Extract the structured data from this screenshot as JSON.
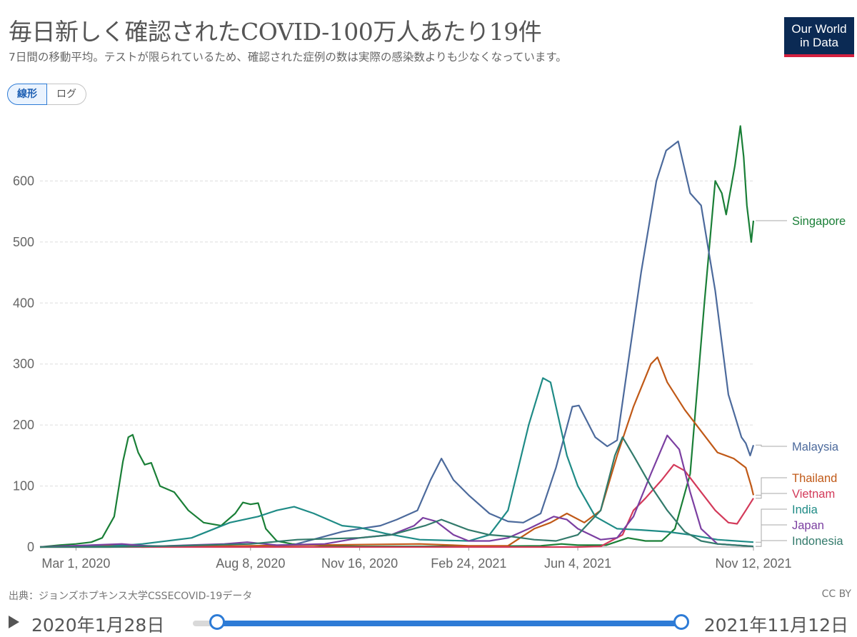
{
  "header": {
    "title": "毎日新しく確認されたCOVID-100万人あたり19件",
    "subtitle": "7日間の移動平均。テストが限られているため、確認された症例の数は実際の感染数よりも少なくなっています。",
    "logo_line1": "Our World",
    "logo_line2": "in Data"
  },
  "controls": {
    "linear_label": "線形",
    "log_label": "ログ"
  },
  "footer": {
    "source": "出典：ジョンズホプキンス大学CSSECOVID-19データ",
    "license": "CC BY"
  },
  "timeline": {
    "start_label": "2020年1月28日",
    "end_label": "2021年11月12日"
  },
  "chart_data": {
    "type": "line",
    "x_unit": "date",
    "x_range": [
      "2020-01-28",
      "2021-11-12"
    ],
    "ylim": [
      0,
      700
    ],
    "y_ticks": [
      0,
      100,
      200,
      300,
      400,
      500,
      600
    ],
    "y_tick_labels": [
      "0",
      "100",
      "200",
      "300",
      "400",
      "500",
      "600"
    ],
    "x_ticks": [
      {
        "date": "2020-03-01",
        "label": "Mar 1, 2020"
      },
      {
        "date": "2020-08-08",
        "label": "Aug 8, 2020"
      },
      {
        "date": "2020-11-16",
        "label": "Nov 16, 2020"
      },
      {
        "date": "2021-02-24",
        "label": "Feb 24, 2021"
      },
      {
        "date": "2021-06-04",
        "label": "Jun 4, 2021"
      },
      {
        "date": "2021-11-12",
        "label": "Nov 12, 2021"
      }
    ],
    "grid": "horizontal-dashed",
    "legend_placement": "right-inline",
    "series": [
      {
        "name": "Singapore",
        "color": "#1a7f37",
        "points": [
          [
            "2020-01-28",
            0
          ],
          [
            "2020-02-15",
            3
          ],
          [
            "2020-03-01",
            5
          ],
          [
            "2020-03-15",
            8
          ],
          [
            "2020-03-25",
            15
          ],
          [
            "2020-04-05",
            50
          ],
          [
            "2020-04-13",
            140
          ],
          [
            "2020-04-18",
            180
          ],
          [
            "2020-04-22",
            184
          ],
          [
            "2020-04-27",
            155
          ],
          [
            "2020-05-03",
            135
          ],
          [
            "2020-05-09",
            138
          ],
          [
            "2020-05-17",
            100
          ],
          [
            "2020-05-30",
            90
          ],
          [
            "2020-06-12",
            60
          ],
          [
            "2020-06-26",
            40
          ],
          [
            "2020-07-12",
            35
          ],
          [
            "2020-07-25",
            55
          ],
          [
            "2020-08-01",
            73
          ],
          [
            "2020-08-08",
            70
          ],
          [
            "2020-08-15",
            72
          ],
          [
            "2020-08-22",
            30
          ],
          [
            "2020-09-01",
            10
          ],
          [
            "2020-09-15",
            5
          ],
          [
            "2020-10-15",
            2
          ],
          [
            "2020-11-16",
            1
          ],
          [
            "2021-02-24",
            1
          ],
          [
            "2021-05-01",
            2
          ],
          [
            "2021-05-20",
            5
          ],
          [
            "2021-06-04",
            3
          ],
          [
            "2021-06-30",
            3
          ],
          [
            "2021-07-20",
            15
          ],
          [
            "2021-08-05",
            10
          ],
          [
            "2021-08-20",
            10
          ],
          [
            "2021-09-01",
            30
          ],
          [
            "2021-09-15",
            120
          ],
          [
            "2021-09-28",
            400
          ],
          [
            "2021-10-08",
            600
          ],
          [
            "2021-10-14",
            580
          ],
          [
            "2021-10-18",
            545
          ],
          [
            "2021-10-26",
            625
          ],
          [
            "2021-10-31",
            690
          ],
          [
            "2021-11-03",
            640
          ],
          [
            "2021-11-06",
            560
          ],
          [
            "2021-11-10",
            500
          ],
          [
            "2021-11-12",
            535
          ]
        ]
      },
      {
        "name": "Malaysia",
        "color": "#4c6a9c",
        "points": [
          [
            "2020-01-28",
            0
          ],
          [
            "2020-03-01",
            2
          ],
          [
            "2020-04-01",
            3
          ],
          [
            "2020-06-01",
            1
          ],
          [
            "2020-08-08",
            1
          ],
          [
            "2020-09-15",
            3
          ],
          [
            "2020-10-10",
            15
          ],
          [
            "2020-10-31",
            25
          ],
          [
            "2020-11-16",
            30
          ],
          [
            "2020-12-05",
            35
          ],
          [
            "2020-12-20",
            45
          ],
          [
            "2021-01-08",
            60
          ],
          [
            "2021-01-20",
            110
          ],
          [
            "2021-01-30",
            145
          ],
          [
            "2021-02-10",
            110
          ],
          [
            "2021-02-24",
            85
          ],
          [
            "2021-03-15",
            55
          ],
          [
            "2021-04-01",
            42
          ],
          [
            "2021-04-15",
            40
          ],
          [
            "2021-05-01",
            55
          ],
          [
            "2021-05-15",
            130
          ],
          [
            "2021-05-30",
            230
          ],
          [
            "2021-06-05",
            232
          ],
          [
            "2021-06-20",
            180
          ],
          [
            "2021-07-01",
            165
          ],
          [
            "2021-07-10",
            175
          ],
          [
            "2021-07-20",
            300
          ],
          [
            "2021-08-01",
            450
          ],
          [
            "2021-08-15",
            600
          ],
          [
            "2021-08-24",
            650
          ],
          [
            "2021-09-04",
            665
          ],
          [
            "2021-09-15",
            580
          ],
          [
            "2021-09-25",
            560
          ],
          [
            "2021-10-08",
            420
          ],
          [
            "2021-10-20",
            250
          ],
          [
            "2021-11-01",
            180
          ],
          [
            "2021-11-05",
            170
          ],
          [
            "2021-11-09",
            150
          ],
          [
            "2021-11-12",
            167
          ]
        ]
      },
      {
        "name": "Thailand",
        "color": "#c05917",
        "points": [
          [
            "2020-01-28",
            0
          ],
          [
            "2020-04-05",
            2
          ],
          [
            "2020-05-01",
            0
          ],
          [
            "2021-01-10",
            5
          ],
          [
            "2021-02-24",
            2
          ],
          [
            "2021-04-01",
            2
          ],
          [
            "2021-04-25",
            30
          ],
          [
            "2021-05-10",
            40
          ],
          [
            "2021-05-25",
            55
          ],
          [
            "2021-06-10",
            40
          ],
          [
            "2021-06-25",
            60
          ],
          [
            "2021-07-10",
            150
          ],
          [
            "2021-07-25",
            230
          ],
          [
            "2021-08-10",
            300
          ],
          [
            "2021-08-16",
            311
          ],
          [
            "2021-08-25",
            270
          ],
          [
            "2021-09-10",
            225
          ],
          [
            "2021-09-25",
            190
          ],
          [
            "2021-10-10",
            155
          ],
          [
            "2021-10-25",
            145
          ],
          [
            "2021-11-05",
            130
          ],
          [
            "2021-11-10",
            100
          ],
          [
            "2021-11-12",
            85
          ]
        ]
      },
      {
        "name": "Vietnam",
        "color": "#d33a5a",
        "points": [
          [
            "2020-01-28",
            0
          ],
          [
            "2021-06-04",
            0
          ],
          [
            "2021-06-25",
            1
          ],
          [
            "2021-07-15",
            20
          ],
          [
            "2021-07-25",
            60
          ],
          [
            "2021-08-05",
            80
          ],
          [
            "2021-08-20",
            110
          ],
          [
            "2021-08-31",
            135
          ],
          [
            "2021-09-10",
            125
          ],
          [
            "2021-09-25",
            90
          ],
          [
            "2021-10-08",
            60
          ],
          [
            "2021-10-20",
            40
          ],
          [
            "2021-10-28",
            38
          ],
          [
            "2021-11-05",
            60
          ],
          [
            "2021-11-12",
            80
          ]
        ]
      },
      {
        "name": "India",
        "color": "#1f8b86",
        "points": [
          [
            "2020-01-28",
            0
          ],
          [
            "2020-04-01",
            1
          ],
          [
            "2020-05-01",
            5
          ],
          [
            "2020-06-15",
            15
          ],
          [
            "2020-07-20",
            40
          ],
          [
            "2020-08-15",
            50
          ],
          [
            "2020-09-01",
            60
          ],
          [
            "2020-09-17",
            66
          ],
          [
            "2020-10-05",
            55
          ],
          [
            "2020-10-31",
            35
          ],
          [
            "2020-11-16",
            32
          ],
          [
            "2020-12-10",
            22
          ],
          [
            "2021-01-10",
            12
          ],
          [
            "2021-02-24",
            10
          ],
          [
            "2021-03-15",
            20
          ],
          [
            "2021-04-01",
            60
          ],
          [
            "2021-04-20",
            200
          ],
          [
            "2021-05-03",
            277
          ],
          [
            "2021-05-10",
            270
          ],
          [
            "2021-05-25",
            150
          ],
          [
            "2021-06-04",
            100
          ],
          [
            "2021-06-20",
            50
          ],
          [
            "2021-07-10",
            30
          ],
          [
            "2021-08-01",
            28
          ],
          [
            "2021-08-25",
            25
          ],
          [
            "2021-09-15",
            20
          ],
          [
            "2021-10-10",
            12
          ],
          [
            "2021-11-12",
            8
          ]
        ]
      },
      {
        "name": "Japan",
        "color": "#7b3fa1",
        "points": [
          [
            "2020-01-28",
            0
          ],
          [
            "2020-04-12",
            5
          ],
          [
            "2020-05-10",
            1
          ],
          [
            "2020-07-15",
            5
          ],
          [
            "2020-08-05",
            8
          ],
          [
            "2020-09-01",
            3
          ],
          [
            "2020-10-15",
            5
          ],
          [
            "2020-11-16",
            15
          ],
          [
            "2020-12-15",
            20
          ],
          [
            "2021-01-05",
            35
          ],
          [
            "2021-01-13",
            48
          ],
          [
            "2021-01-25",
            42
          ],
          [
            "2021-02-10",
            20
          ],
          [
            "2021-02-24",
            10
          ],
          [
            "2021-03-15",
            10
          ],
          [
            "2021-04-01",
            15
          ],
          [
            "2021-04-20",
            30
          ],
          [
            "2021-05-13",
            50
          ],
          [
            "2021-05-25",
            45
          ],
          [
            "2021-06-04",
            30
          ],
          [
            "2021-06-25",
            12
          ],
          [
            "2021-07-10",
            15
          ],
          [
            "2021-07-25",
            50
          ],
          [
            "2021-08-10",
            120
          ],
          [
            "2021-08-25",
            183
          ],
          [
            "2021-09-05",
            160
          ],
          [
            "2021-09-15",
            90
          ],
          [
            "2021-09-25",
            30
          ],
          [
            "2021-10-10",
            5
          ],
          [
            "2021-11-12",
            1
          ]
        ]
      },
      {
        "name": "Indonesia",
        "color": "#327a6b",
        "points": [
          [
            "2020-01-28",
            0
          ],
          [
            "2020-04-01",
            0
          ],
          [
            "2020-06-01",
            2
          ],
          [
            "2020-08-08",
            5
          ],
          [
            "2020-09-20",
            12
          ],
          [
            "2020-11-16",
            15
          ],
          [
            "2020-12-15",
            20
          ],
          [
            "2021-01-15",
            35
          ],
          [
            "2021-01-30",
            45
          ],
          [
            "2021-02-24",
            28
          ],
          [
            "2021-03-15",
            20
          ],
          [
            "2021-04-05",
            17
          ],
          [
            "2021-04-25",
            12
          ],
          [
            "2021-05-15",
            10
          ],
          [
            "2021-06-04",
            20
          ],
          [
            "2021-06-25",
            60
          ],
          [
            "2021-07-08",
            150
          ],
          [
            "2021-07-15",
            180
          ],
          [
            "2021-07-25",
            150
          ],
          [
            "2021-08-10",
            100
          ],
          [
            "2021-08-25",
            60
          ],
          [
            "2021-09-10",
            25
          ],
          [
            "2021-09-25",
            10
          ],
          [
            "2021-10-10",
            5
          ],
          [
            "2021-11-12",
            1
          ]
        ]
      }
    ]
  }
}
